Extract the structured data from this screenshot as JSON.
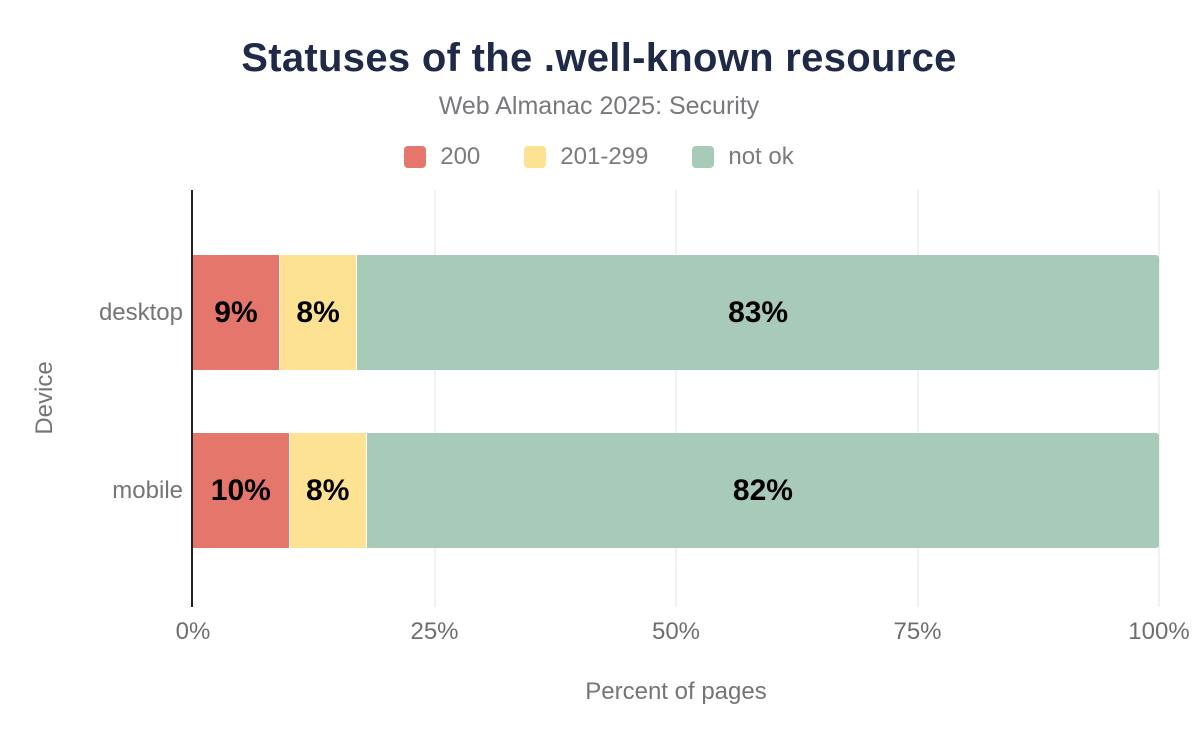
{
  "chart_data": {
    "type": "bar",
    "orientation": "horizontal",
    "stacked": true,
    "title": "Statuses of the .well-known resource",
    "subtitle": "Web Almanac 2025: Security",
    "categories": [
      "desktop",
      "mobile"
    ],
    "series": [
      {
        "name": "200",
        "color": "#e5766c",
        "values": [
          9,
          10
        ]
      },
      {
        "name": "201-299",
        "color": "#fde294",
        "values": [
          8,
          8
        ]
      },
      {
        "name": "not ok",
        "color": "#a8cab8",
        "values": [
          83,
          82
        ]
      }
    ],
    "value_label_suffix": "%",
    "xlabel": "Percent of pages",
    "ylabel": "Device",
    "xlim": [
      0,
      100
    ],
    "x_ticks": [
      {
        "value": 0,
        "label": "0%"
      },
      {
        "value": 25,
        "label": "25%"
      },
      {
        "value": 50,
        "label": "50%"
      },
      {
        "value": 75,
        "label": "75%"
      },
      {
        "value": 100,
        "label": "100%"
      }
    ],
    "grid": "vertical",
    "legend_position": "top"
  },
  "colors": {
    "title": "#1e2a47",
    "subtitle_text": "#78787d",
    "axis_line": "#222222",
    "gridline": "#f1f1f1",
    "tick_text": "#6e6e6e",
    "value_label_text": "#000000",
    "background": "#ffffff"
  }
}
